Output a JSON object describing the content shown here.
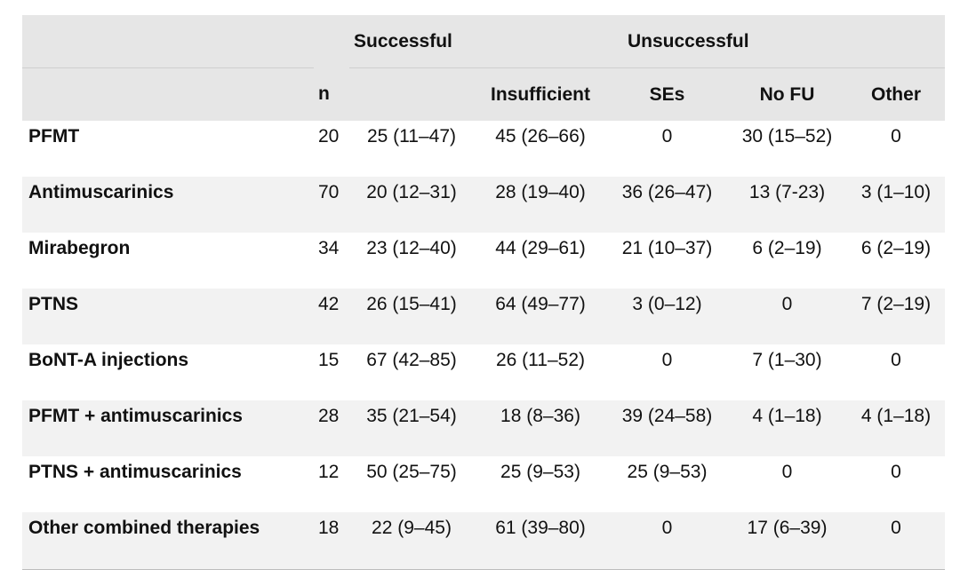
{
  "header": {
    "group_successful": "Successful",
    "group_unsuccessful": "Unsuccessful",
    "col_n": "n",
    "col_insufficient": "Insufficient",
    "col_ses": "SEs",
    "col_nofu": "No FU",
    "col_other": "Other"
  },
  "rows": [
    {
      "name": "PFMT",
      "n": "20",
      "successful": "25 (11–47)",
      "insufficient": "45 (26–66)",
      "ses": "0",
      "nofu": "30 (15–52)",
      "other": "0"
    },
    {
      "name": "Antimuscarinics",
      "n": "70",
      "successful": "20 (12–31)",
      "insufficient": "28 (19–40)",
      "ses": "36 (26–47)",
      "nofu": "13 (7-23)",
      "other": "3 (1–10)"
    },
    {
      "name": "Mirabegron",
      "n": "34",
      "successful": "23 (12–40)",
      "insufficient": "44 (29–61)",
      "ses": "21 (10–37)",
      "nofu": "6 (2–19)",
      "other": "6 (2–19)"
    },
    {
      "name": "PTNS",
      "n": "42",
      "successful": "26 (15–41)",
      "insufficient": "64 (49–77)",
      "ses": "3 (0–12)",
      "nofu": "0",
      "other": "7 (2–19)"
    },
    {
      "name": "BoNT-A injections",
      "n": "15",
      "successful": "67 (42–85)",
      "insufficient": "26 (11–52)",
      "ses": "0",
      "nofu": "7 (1–30)",
      "other": "0"
    },
    {
      "name": "PFMT + antimuscarinics",
      "n": "28",
      "successful": "35 (21–54)",
      "insufficient": "18 (8–36)",
      "ses": "39 (24–58)",
      "nofu": "4 (1–18)",
      "other": "4 (1–18)"
    },
    {
      "name": "PTNS + antimuscarinics",
      "n": "12",
      "successful": "50 (25–75)",
      "insufficient": "25 (9–53)",
      "ses": "25 (9–53)",
      "nofu": "0",
      "other": "0"
    },
    {
      "name": "Other combined therapies",
      "n": "18",
      "successful": "22 (9–45)",
      "insufficient": "61 (39–80)",
      "ses": "0",
      "nofu": "17 (6–39)",
      "other": "0"
    }
  ]
}
